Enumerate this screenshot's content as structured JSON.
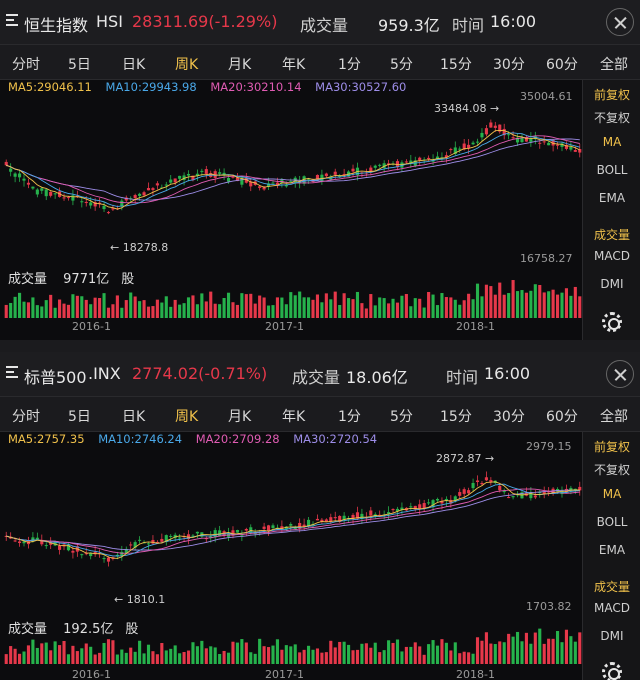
{
  "colors": {
    "up": "#26b24c",
    "down": "#e6384a",
    "ma5": "#f0c14b",
    "ma10": "#4aa8e8",
    "ma20": "#e05cb3",
    "ma30": "#9d8de8",
    "active_tab": "#f0c14b"
  },
  "panels": [
    {
      "index_name": "恒生指数",
      "ticker": "HSI",
      "price_change": "28311.69(-1.29%)",
      "volume_label": "成交量",
      "volume_value": "959.3亿",
      "time_label": "时间",
      "time_value": "16:00",
      "tabs": [
        "分时",
        "5日",
        "日K",
        "周K",
        "月K",
        "年K",
        "1分",
        "5分",
        "15分",
        "30分",
        "60分",
        "全部"
      ],
      "active_tab": "周K",
      "ma": {
        "ma5": "MA5:29046.11",
        "ma10": "MA10:29943.98",
        "ma20": "MA20:30210.14",
        "ma30": "MA30:30527.60"
      },
      "side_menu": [
        "前复权",
        "不复权",
        "MA",
        "BOLL",
        "EMA",
        "成交量",
        "MACD",
        "DMI"
      ],
      "settings_icon": "gear-icon",
      "axis_top": "35004.61",
      "axis_bottom": "16758.27",
      "annotation_high": "33484.08",
      "annotation_low": "18278.8",
      "vol_title": "成交量",
      "vol_value": "9771亿",
      "vol_unit": "股",
      "x_labels": [
        "2016-1",
        "2017-1",
        "2018-1"
      ]
    },
    {
      "index_name": "标普500",
      "ticker": ".INX",
      "price_change": "2774.02(-0.71%)",
      "volume_label": "成交量",
      "volume_value": "18.06亿",
      "time_label": "时间",
      "time_value": "16:00",
      "tabs": [
        "分时",
        "5日",
        "日K",
        "周K",
        "月K",
        "年K",
        "1分",
        "5分",
        "15分",
        "30分",
        "60分",
        "全部"
      ],
      "active_tab": "周K",
      "ma": {
        "ma5": "MA5:2757.35",
        "ma10": "MA10:2746.24",
        "ma20": "MA20:2709.28",
        "ma30": "MA30:2720.54"
      },
      "side_menu": [
        "前复权",
        "不复权",
        "MA",
        "BOLL",
        "EMA",
        "成交量",
        "MACD",
        "DMI"
      ],
      "settings_icon": "gear-icon",
      "axis_top": "2979.15",
      "axis_bottom": "1703.82",
      "annotation_high": "2872.87",
      "annotation_low": "1810.1",
      "vol_title": "成交量",
      "vol_value": "192.5亿",
      "vol_unit": "股",
      "x_labels": [
        "2016-1",
        "2017-1",
        "2018-1"
      ]
    }
  ]
}
